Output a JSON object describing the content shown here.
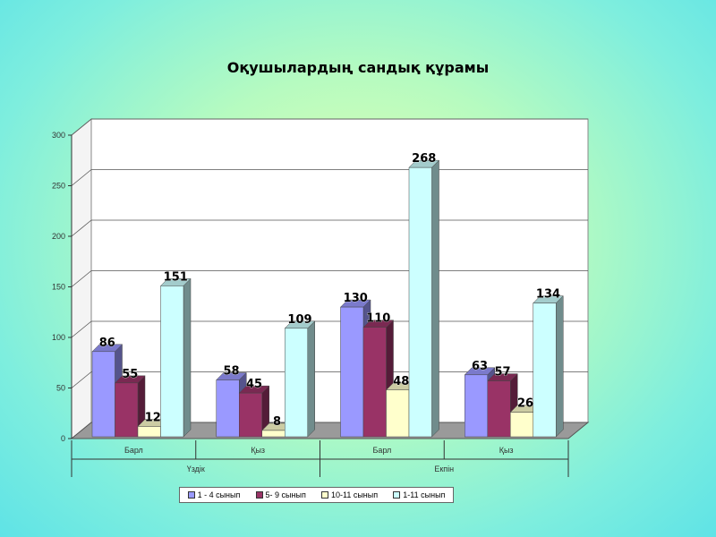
{
  "chart_data": {
    "type": "bar",
    "title": "Оқушылардың сандық құрамы",
    "ylim": [
      0,
      300
    ],
    "yticks": [
      0,
      50,
      100,
      150,
      200,
      250,
      300
    ],
    "categories": [
      "Барл",
      "Қыз",
      "Барл",
      "Қыз"
    ],
    "groups": [
      {
        "label": "Үздік",
        "span": [
          0,
          1
        ]
      },
      {
        "label": "Екпін",
        "span": [
          2,
          3
        ]
      }
    ],
    "series": [
      {
        "name": "1 - 4 сынып",
        "color": "#9a99ff",
        "values": [
          86,
          58,
          130,
          63
        ]
      },
      {
        "name": "5- 9 сынып",
        "color": "#993366",
        "values": [
          55,
          45,
          110,
          57
        ]
      },
      {
        "name": "10-11 сынып",
        "color": "#ffffcc",
        "values": [
          12,
          8,
          48,
          26
        ]
      },
      {
        "name": "1-11 сынып",
        "color": "#ccffff",
        "values": [
          151,
          109,
          268,
          134
        ]
      }
    ],
    "grid": true,
    "legend_position": "bottom"
  }
}
